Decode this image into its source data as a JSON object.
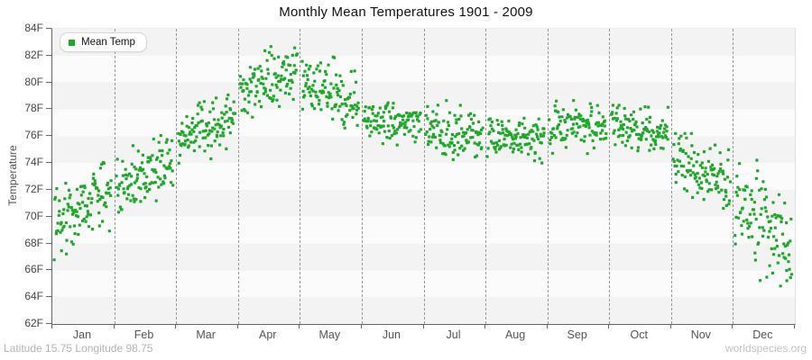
{
  "chart_data": {
    "type": "scatter",
    "title": "Monthly Mean Temperatures 1901 - 2009",
    "ylabel": "Temperature",
    "xlabel": "",
    "ylim": [
      62,
      84
    ],
    "y_tick_step": 2,
    "y_tick_labels": [
      "84F",
      "82F",
      "80F",
      "78F",
      "76F",
      "74F",
      "72F",
      "70F",
      "68F",
      "66F",
      "64F",
      "62F"
    ],
    "x_categories": [
      "Jan",
      "Feb",
      "Mar",
      "Apr",
      "May",
      "Jun",
      "Jul",
      "Aug",
      "Sep",
      "Oct",
      "Nov",
      "Dec"
    ],
    "legend": [
      {
        "label": "Mean Temp",
        "color": "#1fa82a"
      }
    ],
    "legend_position": "top-left",
    "grid": "vertical dashed month separators",
    "background_bands": {
      "interval_F": 2,
      "colors": [
        "#f3f3f4",
        "#fbfbfc"
      ]
    },
    "marker": {
      "shape": "square",
      "size": 3.2,
      "color": "#1fa82a"
    },
    "years_range": "1901 - 2009",
    "points_per_month": 109,
    "seed": 42,
    "series": [
      {
        "month": "Jan",
        "start": 69.4,
        "end": 72.2,
        "std": 1.35,
        "min": 66.3,
        "max": 75.8,
        "mean": 70.7
      },
      {
        "month": "Feb",
        "start": 71.9,
        "end": 74.3,
        "std": 1.2,
        "min": 69.2,
        "max": 76.4,
        "mean": 73.0
      },
      {
        "month": "Mar",
        "start": 75.4,
        "end": 77.7,
        "std": 1.0,
        "min": 73.3,
        "max": 79.8,
        "mean": 76.6
      },
      {
        "month": "Apr",
        "start": 79.4,
        "end": 80.6,
        "std": 1.1,
        "min": 77.3,
        "max": 83.2,
        "mean": 80.0
      },
      {
        "month": "May",
        "start": 80.4,
        "end": 77.9,
        "std": 1.1,
        "min": 76.6,
        "max": 83.0,
        "mean": 79.2
      },
      {
        "month": "Jun",
        "start": 77.3,
        "end": 76.7,
        "std": 0.8,
        "min": 74.9,
        "max": 79.4,
        "mean": 77.0
      },
      {
        "month": "Jul",
        "start": 76.5,
        "end": 76.0,
        "std": 0.9,
        "min": 74.2,
        "max": 79.4,
        "mean": 76.3
      },
      {
        "month": "Aug",
        "start": 76.0,
        "end": 75.8,
        "std": 0.75,
        "min": 74.0,
        "max": 78.1,
        "mean": 75.9
      },
      {
        "month": "Sep",
        "start": 76.7,
        "end": 76.7,
        "std": 0.8,
        "min": 74.7,
        "max": 78.7,
        "mean": 76.7
      },
      {
        "month": "Oct",
        "start": 76.7,
        "end": 76.2,
        "std": 0.75,
        "min": 74.8,
        "max": 78.3,
        "mean": 76.5
      },
      {
        "month": "Nov",
        "start": 74.3,
        "end": 72.4,
        "std": 1.1,
        "min": 69.8,
        "max": 76.2,
        "mean": 73.4
      },
      {
        "month": "Dec",
        "start": 71.3,
        "end": 67.5,
        "std": 1.85,
        "min": 63.7,
        "max": 74.6,
        "mean": 69.4
      }
    ]
  },
  "footer": {
    "left": "Latitude 15.75 Longitude 98.75",
    "right": "worldspecies.org"
  }
}
